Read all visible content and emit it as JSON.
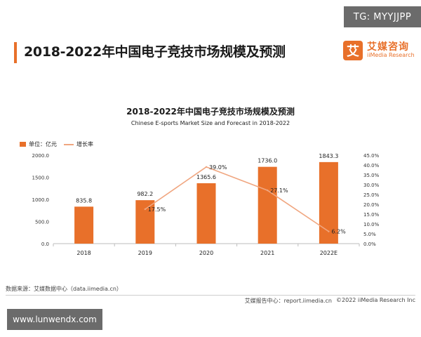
{
  "watermark_top": "TG: MYYJJPP",
  "header": {
    "title": "2018-2022年中国电子竞技市场规模及预测",
    "logo_cn": "艾媒咨询",
    "logo_en": "iiMedia Research",
    "logo_mark": "艾"
  },
  "chart_data": {
    "type": "bar",
    "title": "2018-2022年中国电子竞技市场规模及预测",
    "subtitle": "Chinese E-sports Market Size and Forecast in 2018-2022",
    "categories": [
      "2018",
      "2019",
      "2020",
      "2021",
      "2022E"
    ],
    "series": [
      {
        "name": "单位：亿元",
        "type": "bar",
        "values": [
          835.8,
          982.2,
          1365.6,
          1736.0,
          1843.3
        ],
        "labels": [
          "835.8",
          "982.2",
          "1365.6",
          "1736.0",
          "1843.3"
        ]
      },
      {
        "name": "增长率",
        "type": "line",
        "axis": "right",
        "values": [
          null,
          17.5,
          39.0,
          27.1,
          6.2
        ],
        "labels": [
          "",
          "17.5%",
          "39.0%",
          "27.1%",
          "6.2%"
        ]
      }
    ],
    "ylim_left": [
      0,
      2000
    ],
    "yticks_left": [
      "0.0",
      "500.0",
      "1000.0",
      "1500.0",
      "2000.0"
    ],
    "ylim_right": [
      0,
      45
    ],
    "yticks_right": [
      "0.0%",
      "5.0%",
      "10.0%",
      "15.0%",
      "20.0%",
      "25.0%",
      "30.0%",
      "35.0%",
      "40.0%",
      "45.0%"
    ],
    "legend_position": "top-left",
    "grid": false,
    "colors": {
      "bar": "#e8702a",
      "line": "#f0a680"
    }
  },
  "footer": {
    "source": "数据来源：艾媒数据中心（data.iimedia.cn）",
    "center": "艾媒报告中心：report.iimedia.cn",
    "copyright": "©2022  iiMedia Research  Inc"
  },
  "watermark_bottom": "www.lunwendx.com"
}
